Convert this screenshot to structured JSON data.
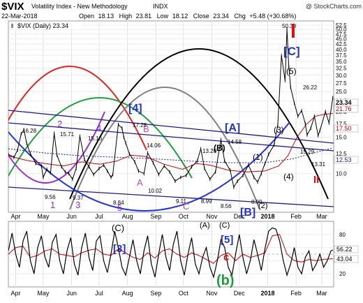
{
  "header": {
    "ticker": "$VIX",
    "name": "Volatility Index - New Methodology",
    "exchange": "INDX",
    "watermark": "@ StockCharts.com",
    "date": "22-Mar-2018",
    "open_label": "Open",
    "open": "18.13",
    "high_label": "High",
    "high": "23.81",
    "low_label": "Low",
    "low": "18.12",
    "close_label": "Close",
    "close": "23.34",
    "chg_label": "Chg",
    "chg": "+5.48 (+30.68%)",
    "legend": "$VIX (Daily) 23.34"
  },
  "colors": {
    "price": "#000000",
    "ma50": "#cc0000",
    "ma200": "#1b1b8f",
    "band": "#1b1b8f",
    "cycle_black": "#000000",
    "cycle_gray": "#808080",
    "cycle_red": "#e8201c",
    "cycle_green": "#1fa03c",
    "cycle_blue": "#2233dd",
    "cycle_purple": "#9933cc",
    "wave_blue": "#2233cc",
    "wave_purple": "#8a2be2",
    "wave_pink": "#c0508a",
    "wave_red": "#dd1111",
    "wave_green": "#1aa03a",
    "tag_red": "#dd1111",
    "tag_gray": "#e6e6e6"
  },
  "chart_data": [
    {
      "type": "line",
      "title": "$VIX (Daily) 23.34",
      "scale": "log",
      "ylim": [
        6.5,
        55
      ],
      "y_ticks": [
        10.0,
        12.5,
        15.0,
        17.5,
        20.0,
        22.5,
        25.0,
        27.5,
        30.0,
        32.5,
        35.0,
        37.5,
        40.0,
        42.5,
        45.0,
        47.5,
        50.0,
        52.5
      ],
      "x_tick_labels": [
        "Apr",
        "May",
        "Jun",
        "Jul",
        "Aug",
        "Sep",
        "Oct",
        "Nov",
        "Dec",
        "2018",
        "Feb",
        "Mar"
      ],
      "x_tick_days": [
        8,
        38,
        69,
        99,
        130,
        161,
        191,
        222,
        252,
        283,
        314,
        342
      ],
      "x_range_days": [
        0,
        355
      ],
      "series": [
        {
          "key": "price",
          "x_days": [
            0,
            6,
            10,
            14,
            17,
            20,
            24,
            30,
            36,
            38,
            42,
            46,
            50,
            53,
            58,
            62,
            66,
            70,
            74,
            78,
            83,
            88,
            93,
            99,
            104,
            108,
            112,
            114,
            120,
            124,
            126,
            128,
            132,
            138,
            142,
            148,
            152,
            158,
            164,
            170,
            176,
            182,
            188,
            194,
            200,
            206,
            210,
            214,
            220,
            226,
            232,
            236,
            242,
            246,
            250,
            256,
            262,
            268,
            272,
            276,
            280,
            284,
            290,
            294,
            298,
            302,
            304,
            306,
            308,
            312,
            316,
            320,
            324,
            326,
            330,
            334,
            338,
            340,
            346,
            350,
            354
          ],
          "values": [
            12.4,
            12.0,
            13.0,
            15.6,
            16.3,
            14.0,
            12.5,
            11.2,
            10.9,
            9.6,
            10.5,
            10.1,
            15.7,
            12.3,
            10.8,
            10.2,
            10.0,
            9.4,
            10.6,
            15.2,
            11.7,
            10.8,
            9.9,
            10.6,
            11.0,
            10.3,
            9.6,
            9.9,
            17.3,
            16.6,
            15.0,
            14.1,
            12.5,
            11.4,
            10.3,
            10.0,
            12.6,
            11.3,
            9.9,
            10.9,
            10.2,
            9.2,
            9.6,
            9.8,
            10.8,
            11.5,
            13.2,
            10.6,
            9.4,
            10.2,
            14.6,
            11.5,
            10.4,
            8.6,
            9.2,
            9.8,
            11.0,
            9.6,
            9.1,
            10.0,
            11.2,
            12.4,
            13.8,
            17.2,
            37.3,
            28.3,
            50.3,
            33.0,
            26.2,
            22.0,
            19.0,
            20.2,
            17.5,
            15.4,
            16.6,
            19.0,
            15.3,
            16.2,
            20.0,
            17.6,
            23.3
          ]
        },
        {
          "key": "ma50",
          "x_days": [
            0,
            20,
            40,
            60,
            80,
            100,
            118,
            134,
            150,
            170,
            190,
            205,
            220,
            240,
            260,
            280,
            295,
            305,
            315,
            325,
            335,
            345,
            354
          ],
          "values": [
            12.2,
            11.6,
            11.2,
            10.9,
            11.4,
            11.1,
            11.5,
            12.3,
            12.1,
            11.1,
            10.5,
            11.2,
            11.0,
            10.4,
            10.2,
            10.3,
            10.9,
            12.2,
            15.0,
            17.3,
            19.0,
            19.4,
            19.6
          ]
        },
        {
          "key": "ma200",
          "x_days": [
            0,
            40,
            80,
            120,
            160,
            200,
            240,
            280,
            310,
            330,
            354
          ],
          "values": [
            13.2,
            12.6,
            12.2,
            12.0,
            11.8,
            11.5,
            11.3,
            11.3,
            11.8,
            12.5,
            13.3
          ]
        }
      ],
      "price_labels": [
        "16.28",
        "15.71",
        "15.16",
        "17.28",
        "14.06",
        "13.20",
        "14.58",
        "9.56",
        "9.37",
        "8.84",
        "10.02",
        "9.11",
        "8.99",
        "8.56",
        "8.99",
        "50.30",
        "26.22",
        "15.29",
        "13.31"
      ],
      "wave_labels": [
        "[C]",
        "[4]",
        "[A]",
        "(B)",
        "[B]",
        "(A)",
        "(C)",
        "(1)",
        "(2)",
        "(3)",
        "(4)",
        "(5)",
        "1",
        "2",
        "3",
        "4",
        "5",
        "II",
        "A",
        "B",
        "C"
      ],
      "price_tags": [
        "23.34",
        "21.76",
        "17.50",
        "12.53"
      ]
    },
    {
      "type": "line",
      "title": "",
      "ylim": [
        0,
        100
      ],
      "y_ticks": [
        20,
        40,
        60,
        80
      ],
      "series": [
        {
          "key": "oscillator",
          "x_days": [
            0,
            4,
            8,
            12,
            16,
            20,
            24,
            28,
            32,
            36,
            40,
            44,
            48,
            52,
            56,
            60,
            64,
            68,
            72,
            76,
            80,
            84,
            88,
            92,
            96,
            100,
            104,
            108,
            112,
            116,
            120,
            124,
            128,
            132,
            136,
            140,
            144,
            148,
            152,
            156,
            160,
            164,
            168,
            172,
            176,
            180,
            184,
            188,
            192,
            196,
            200,
            204,
            208,
            212,
            216,
            220,
            224,
            228,
            232,
            236,
            240,
            244,
            248,
            252,
            256,
            260,
            264,
            268,
            272,
            276,
            280,
            284,
            288,
            292,
            296,
            300,
            304,
            308,
            312,
            316,
            320,
            324,
            328,
            332,
            336,
            340,
            344,
            348,
            352,
            354
          ],
          "values": [
            55,
            82,
            50,
            30,
            70,
            85,
            40,
            20,
            60,
            78,
            45,
            30,
            68,
            80,
            40,
            20,
            55,
            75,
            35,
            18,
            60,
            82,
            45,
            25,
            70,
            78,
            40,
            22,
            50,
            85,
            60,
            30,
            18,
            45,
            72,
            40,
            20,
            55,
            78,
            35,
            15,
            50,
            80,
            45,
            25,
            65,
            85,
            40,
            18,
            50,
            75,
            35,
            20,
            45,
            60,
            30,
            15,
            40,
            72,
            60,
            30,
            18,
            50,
            80,
            45,
            20,
            40,
            72,
            50,
            25,
            58,
            85,
            90,
            88,
            70,
            40,
            18,
            35,
            60,
            30,
            20,
            45,
            55,
            25,
            35,
            50,
            30,
            40,
            55,
            56.22
          ]
        },
        {
          "key": "signal",
          "x_days": [
            0,
            8,
            16,
            24,
            32,
            40,
            48,
            56,
            64,
            72,
            80,
            88,
            96,
            104,
            112,
            120,
            128,
            136,
            144,
            152,
            160,
            168,
            176,
            184,
            192,
            200,
            208,
            216,
            224,
            232,
            240,
            248,
            256,
            264,
            272,
            280,
            288,
            296,
            304,
            312,
            320,
            328,
            336,
            344,
            354
          ],
          "values": [
            50,
            60,
            62,
            45,
            48,
            55,
            58,
            50,
            48,
            46,
            52,
            56,
            58,
            50,
            48,
            58,
            52,
            45,
            42,
            52,
            44,
            55,
            58,
            50,
            45,
            52,
            48,
            42,
            36,
            48,
            52,
            40,
            50,
            45,
            48,
            52,
            78,
            80,
            50,
            40,
            38,
            42,
            40,
            42,
            43.04
          ]
        }
      ],
      "wave_labels": [
        "(C)",
        "[3]",
        "[5]",
        "c",
        "(b)"
      ],
      "value_tags": [
        "56.22",
        "43.04"
      ]
    }
  ]
}
